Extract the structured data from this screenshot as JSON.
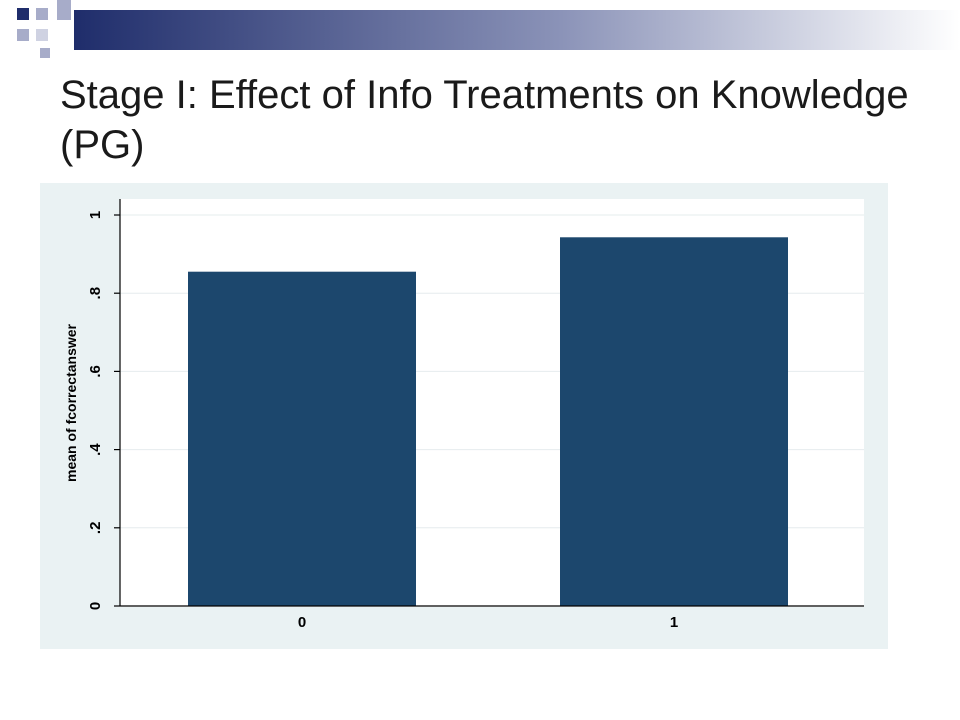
{
  "slide": {
    "title": "Stage I: Effect of Info Treatments  on Knowledge (PG)"
  },
  "colors": {
    "bar": "#1c476d",
    "plot_background": "#ffffff",
    "panel_background": "#eaf2f3",
    "gridline": "#e6ecee",
    "axis": "#000000",
    "header_gradient_start": "#1f2d6b",
    "header_gradient_end": "#ffffff"
  },
  "header_decoration": {
    "icon": "square-cluster-icon"
  },
  "chart_data": {
    "type": "bar",
    "categories": [
      "0",
      "1"
    ],
    "values": [
      0.855,
      0.943
    ],
    "title": "",
    "xlabel": "",
    "ylabel": "mean of fcorrectanswer",
    "ylim": [
      0,
      1
    ],
    "yticks": [
      0,
      0.2,
      0.4,
      0.6,
      0.8,
      1
    ],
    "ytick_labels": [
      "0",
      ".2",
      ".4",
      ".6",
      ".8",
      "1"
    ],
    "grid": true,
    "legend": "none"
  }
}
